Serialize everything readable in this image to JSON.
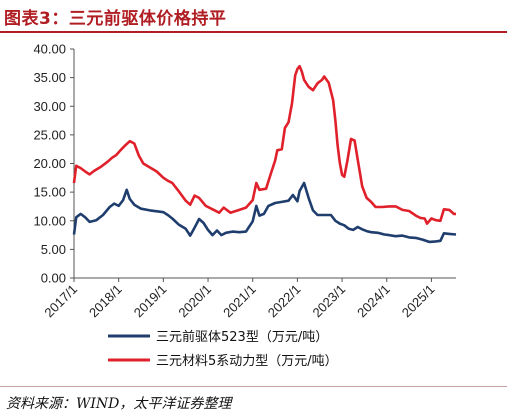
{
  "header": {
    "title": "图表3：三元前驱体价格持平"
  },
  "footer": {
    "source": "资料来源：WIND，太平洋证券整理"
  },
  "chart_data": {
    "type": "line",
    "title": "",
    "xlabel": "",
    "ylabel": "",
    "ylim": [
      0,
      40
    ],
    "yticks": [
      "0.00",
      "5.00",
      "10.00",
      "15.00",
      "20.00",
      "25.00",
      "30.00",
      "35.00",
      "40.00"
    ],
    "xlim": [
      2017.0,
      2025.55
    ],
    "xticks": [
      {
        "label": "2017/1",
        "x": 2017.0
      },
      {
        "label": "2018/1",
        "x": 2018.0
      },
      {
        "label": "2019/1",
        "x": 2019.0
      },
      {
        "label": "2020/1",
        "x": 2020.0
      },
      {
        "label": "2021/1",
        "x": 2021.0
      },
      {
        "label": "2022/1",
        "x": 2022.0
      },
      {
        "label": "2023/1",
        "x": 2023.0
      },
      {
        "label": "2024/1",
        "x": 2024.0
      },
      {
        "label": "2025/1",
        "x": 2025.0
      }
    ],
    "grid": false,
    "legend_position": "bottom",
    "series": [
      {
        "name": "三元前驱体523型（万元/吨）",
        "color": "#1f3e6e",
        "points": [
          [
            2017.0,
            7.6
          ],
          [
            2017.05,
            10.6
          ],
          [
            2017.15,
            11.2
          ],
          [
            2017.25,
            10.6
          ],
          [
            2017.35,
            9.8
          ],
          [
            2017.5,
            10.1
          ],
          [
            2017.65,
            11.0
          ],
          [
            2017.8,
            12.4
          ],
          [
            2017.9,
            13.0
          ],
          [
            2018.0,
            12.6
          ],
          [
            2018.1,
            13.6
          ],
          [
            2018.18,
            15.4
          ],
          [
            2018.25,
            13.8
          ],
          [
            2018.35,
            12.8
          ],
          [
            2018.5,
            12.1
          ],
          [
            2018.7,
            11.8
          ],
          [
            2018.9,
            11.6
          ],
          [
            2019.0,
            11.5
          ],
          [
            2019.1,
            11.0
          ],
          [
            2019.2,
            10.4
          ],
          [
            2019.35,
            9.3
          ],
          [
            2019.5,
            8.6
          ],
          [
            2019.6,
            7.4
          ],
          [
            2019.7,
            8.8
          ],
          [
            2019.8,
            10.3
          ],
          [
            2019.9,
            9.6
          ],
          [
            2020.0,
            8.4
          ],
          [
            2020.1,
            7.5
          ],
          [
            2020.2,
            8.3
          ],
          [
            2020.3,
            7.5
          ],
          [
            2020.4,
            7.9
          ],
          [
            2020.55,
            8.1
          ],
          [
            2020.7,
            8.0
          ],
          [
            2020.85,
            8.1
          ],
          [
            2021.0,
            9.9
          ],
          [
            2021.08,
            12.6
          ],
          [
            2021.15,
            10.9
          ],
          [
            2021.25,
            11.2
          ],
          [
            2021.35,
            12.6
          ],
          [
            2021.5,
            13.1
          ],
          [
            2021.65,
            13.3
          ],
          [
            2021.8,
            13.5
          ],
          [
            2021.9,
            14.5
          ],
          [
            2022.0,
            13.4
          ],
          [
            2022.05,
            15.2
          ],
          [
            2022.15,
            16.6
          ],
          [
            2022.25,
            14.0
          ],
          [
            2022.35,
            11.8
          ],
          [
            2022.45,
            11.0
          ],
          [
            2022.6,
            11.0
          ],
          [
            2022.75,
            11.0
          ],
          [
            2022.85,
            10.0
          ],
          [
            2022.95,
            9.5
          ],
          [
            2023.05,
            9.2
          ],
          [
            2023.15,
            8.6
          ],
          [
            2023.25,
            8.4
          ],
          [
            2023.35,
            8.9
          ],
          [
            2023.45,
            8.5
          ],
          [
            2023.55,
            8.2
          ],
          [
            2023.65,
            8.0
          ],
          [
            2023.8,
            7.9
          ],
          [
            2023.95,
            7.6
          ],
          [
            2024.05,
            7.5
          ],
          [
            2024.2,
            7.3
          ],
          [
            2024.35,
            7.4
          ],
          [
            2024.5,
            7.1
          ],
          [
            2024.65,
            7.0
          ],
          [
            2024.8,
            6.7
          ],
          [
            2024.95,
            6.3
          ],
          [
            2025.1,
            6.4
          ],
          [
            2025.2,
            6.5
          ],
          [
            2025.28,
            7.8
          ],
          [
            2025.4,
            7.7
          ],
          [
            2025.55,
            7.6
          ]
        ]
      },
      {
        "name": "三元材料5系动力型（万元/吨）",
        "color": "#e0202a",
        "points": [
          [
            2017.0,
            16.6
          ],
          [
            2017.05,
            19.6
          ],
          [
            2017.15,
            19.2
          ],
          [
            2017.25,
            18.6
          ],
          [
            2017.35,
            18.1
          ],
          [
            2017.45,
            18.7
          ],
          [
            2017.6,
            19.4
          ],
          [
            2017.75,
            20.3
          ],
          [
            2017.85,
            21.0
          ],
          [
            2017.95,
            21.5
          ],
          [
            2018.05,
            22.4
          ],
          [
            2018.15,
            23.2
          ],
          [
            2018.25,
            23.9
          ],
          [
            2018.35,
            23.5
          ],
          [
            2018.45,
            21.4
          ],
          [
            2018.55,
            20.0
          ],
          [
            2018.7,
            19.3
          ],
          [
            2018.85,
            18.6
          ],
          [
            2019.0,
            17.5
          ],
          [
            2019.1,
            17.0
          ],
          [
            2019.2,
            16.6
          ],
          [
            2019.35,
            15.1
          ],
          [
            2019.5,
            13.5
          ],
          [
            2019.6,
            12.8
          ],
          [
            2019.7,
            14.4
          ],
          [
            2019.8,
            14.0
          ],
          [
            2019.95,
            12.6
          ],
          [
            2020.1,
            12.0
          ],
          [
            2020.25,
            11.4
          ],
          [
            2020.35,
            12.3
          ],
          [
            2020.5,
            11.4
          ],
          [
            2020.7,
            11.9
          ],
          [
            2020.85,
            12.3
          ],
          [
            2021.0,
            13.6
          ],
          [
            2021.08,
            16.6
          ],
          [
            2021.15,
            15.4
          ],
          [
            2021.3,
            15.6
          ],
          [
            2021.4,
            18.1
          ],
          [
            2021.5,
            20.5
          ],
          [
            2021.55,
            22.3
          ],
          [
            2021.65,
            22.5
          ],
          [
            2021.72,
            26.2
          ],
          [
            2021.8,
            27.2
          ],
          [
            2021.88,
            30.5
          ],
          [
            2021.95,
            35.4
          ],
          [
            2022.0,
            36.5
          ],
          [
            2022.05,
            37.0
          ],
          [
            2022.1,
            36.0
          ],
          [
            2022.15,
            34.6
          ],
          [
            2022.25,
            33.4
          ],
          [
            2022.35,
            32.8
          ],
          [
            2022.45,
            34.0
          ],
          [
            2022.55,
            34.6
          ],
          [
            2022.6,
            35.2
          ],
          [
            2022.7,
            34.1
          ],
          [
            2022.8,
            31.1
          ],
          [
            2022.85,
            27.5
          ],
          [
            2022.9,
            23.2
          ],
          [
            2022.95,
            20.1
          ],
          [
            2023.0,
            18.0
          ],
          [
            2023.05,
            17.7
          ],
          [
            2023.12,
            20.5
          ],
          [
            2023.2,
            24.3
          ],
          [
            2023.28,
            24.0
          ],
          [
            2023.35,
            20.7
          ],
          [
            2023.45,
            16.0
          ],
          [
            2023.55,
            14.0
          ],
          [
            2023.65,
            13.3
          ],
          [
            2023.75,
            12.4
          ],
          [
            2023.9,
            12.4
          ],
          [
            2024.05,
            12.5
          ],
          [
            2024.2,
            12.5
          ],
          [
            2024.35,
            11.9
          ],
          [
            2024.5,
            11.7
          ],
          [
            2024.65,
            10.9
          ],
          [
            2024.75,
            10.5
          ],
          [
            2024.85,
            10.4
          ],
          [
            2024.9,
            9.5
          ],
          [
            2025.0,
            10.4
          ],
          [
            2025.1,
            10.1
          ],
          [
            2025.2,
            10.0
          ],
          [
            2025.28,
            12.0
          ],
          [
            2025.4,
            11.9
          ],
          [
            2025.5,
            11.2
          ],
          [
            2025.55,
            11.2
          ]
        ]
      }
    ]
  }
}
